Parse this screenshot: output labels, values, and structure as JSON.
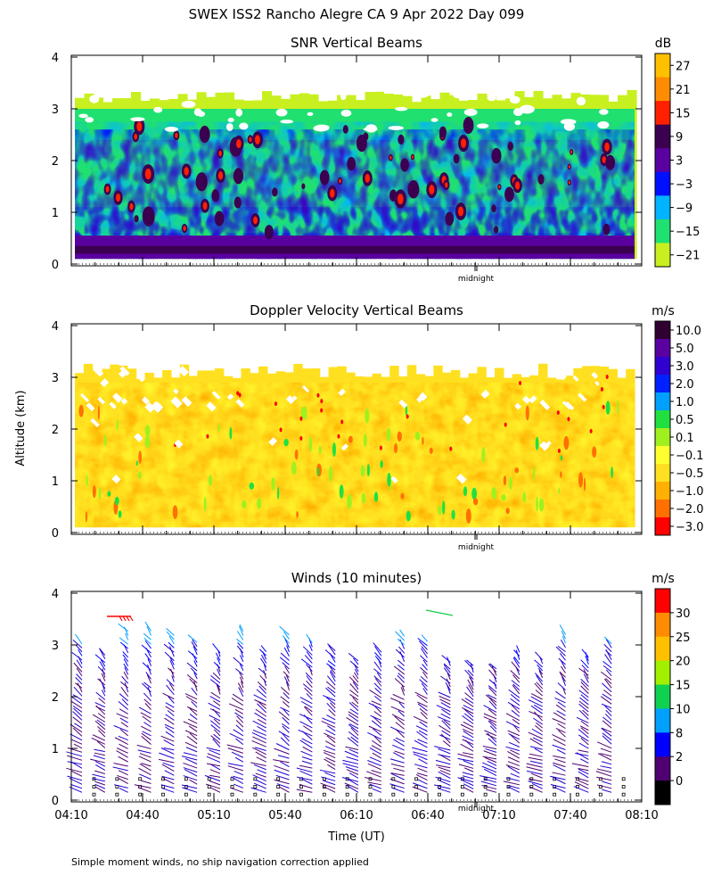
{
  "title": "SWEX ISS2 Rancho Alegre CA   9 Apr 2022 Day 099",
  "ylabel": "Altitude (km)",
  "xlabel": "Time (UT)",
  "footnote": "Simple moment winds, no ship navigation correction applied",
  "midnight_label": "midnight",
  "x_ticks": [
    "04:10",
    "04:40",
    "05:10",
    "05:40",
    "06:10",
    "06:40",
    "07:10",
    "07:40",
    "08:10"
  ],
  "y_ticks": [
    "0",
    "1",
    "2",
    "3",
    "4"
  ],
  "chart_data": [
    {
      "type": "heatmap",
      "title": "SNR Vertical Beams",
      "units": "dB",
      "xlim": [
        "04:10",
        "08:10"
      ],
      "ylim": [
        0,
        4
      ],
      "data_top_km": 3.3,
      "colorbar": {
        "labels": [
          "27",
          "21",
          "15",
          "9",
          "3",
          "−3",
          "−9",
          "−15",
          "−21"
        ],
        "colors": [
          "#ffc000",
          "#ff8c00",
          "#ff2000",
          "#3c0050",
          "#5a00a0",
          "#0010ff",
          "#00b4ff",
          "#20e070",
          "#c8f020"
        ]
      }
    },
    {
      "type": "heatmap",
      "title": "Doppler Velocity Vertical Beams",
      "units": "m/s",
      "xlim": [
        "04:10",
        "08:10"
      ],
      "ylim": [
        0,
        4
      ],
      "data_top_km": 3.2,
      "colorbar": {
        "labels": [
          "10.0",
          "5.0",
          "3.0",
          "2.0",
          "1.0",
          "0.5",
          "0.1",
          "−0.1",
          "−0.5",
          "−1.0",
          "−2.0",
          "−3.0"
        ],
        "colors": [
          "#300030",
          "#5a00a0",
          "#3000d0",
          "#0020ff",
          "#00a0ff",
          "#20e040",
          "#a0f020",
          "#ffff30",
          "#ffe020",
          "#ffb000",
          "#ff7000",
          "#ff0000"
        ]
      }
    },
    {
      "type": "scatter",
      "title": "Winds (10 minutes)",
      "units": "m/s",
      "xlim": [
        "04:10",
        "08:10"
      ],
      "ylim": [
        0,
        4
      ],
      "profile_interval_min": 10,
      "colorbar": {
        "labels": [
          "30",
          "25",
          "20",
          "15",
          "10",
          "8",
          "2",
          "0"
        ],
        "colors": [
          "#ff0000",
          "#ff8c00",
          "#ffc000",
          "#a0f000",
          "#10d050",
          "#00a0ff",
          "#0000ff",
          "#500070",
          "#000000"
        ]
      }
    }
  ]
}
